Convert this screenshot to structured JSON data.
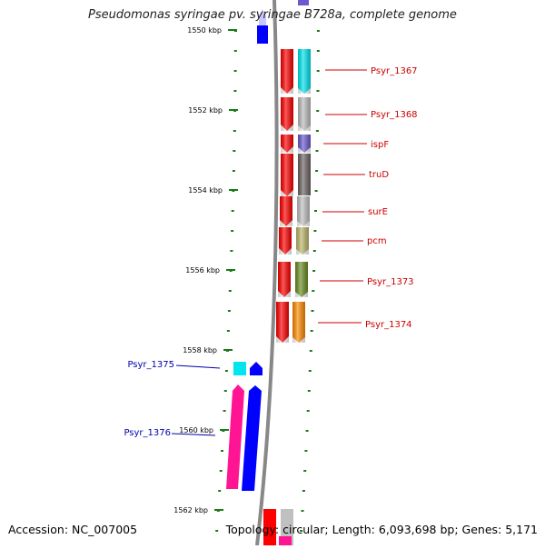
{
  "title": "Pseudomonas syringae pv. syringae B728a, complete genome",
  "footer": {
    "accession": "Accession: NC_007005",
    "summary": "Topology: circular; Length: 6,093,698 bp; Genes: 5,171"
  },
  "ticks": [
    "1550 kbp",
    "1552 kbp",
    "1554 kbp",
    "1556 kbp",
    "1558 kbp",
    "1560 kbp",
    "1562 kbp"
  ],
  "genes": [
    {
      "label": "Psyr_1367",
      "color": "#cc0000"
    },
    {
      "label": "Psyr_1368",
      "color": "#cc0000"
    },
    {
      "label": "ispF",
      "color": "#cc0000"
    },
    {
      "label": "truD",
      "color": "#cc0000"
    },
    {
      "label": "surE",
      "color": "#cc0000"
    },
    {
      "label": "pcm",
      "color": "#cc0000"
    },
    {
      "label": "Psyr_1373",
      "color": "#cc0000"
    },
    {
      "label": "Psyr_1374",
      "color": "#cc0000"
    },
    {
      "label": "Psyr_1375",
      "color": "#0000aa"
    },
    {
      "label": "Psyr_1376",
      "color": "#0000aa"
    }
  ],
  "colors": {
    "backbone": "#888888",
    "tick": "#1a7a1a",
    "forward_cds": "#ff0000",
    "reverse_cds": "#0000ff"
  }
}
